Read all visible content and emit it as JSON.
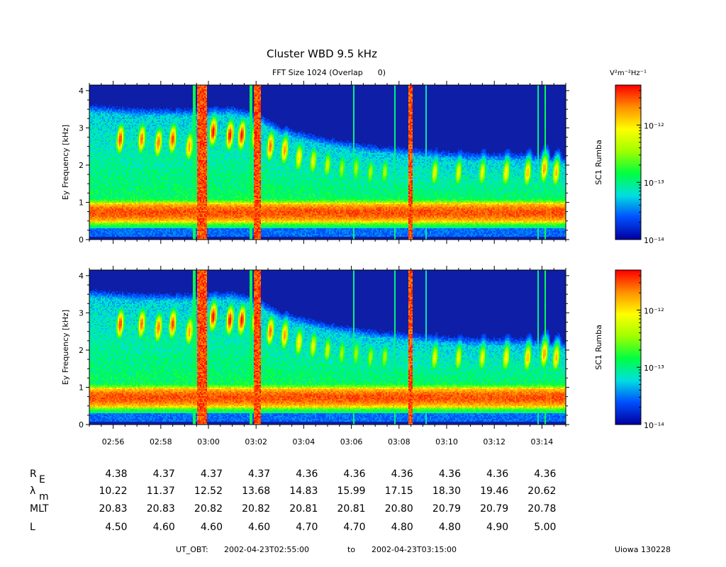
{
  "chart_data": {
    "type": "heatmap",
    "title": "Cluster WBD 9.5 kHz",
    "subtitle": "FFT Size 1024 (Overlap      0)",
    "colorbar_unit": "V²m⁻²Hz⁻¹",
    "colorbar_range": [
      1e-14,
      5e-12
    ],
    "colorbar_ticks": [
      {
        "value": 1e-14,
        "label": "10⁻¹⁴"
      },
      {
        "value": 1e-13,
        "label": "10⁻¹³"
      },
      {
        "value": 1e-12,
        "label": "10⁻¹²"
      }
    ],
    "colormap": [
      "#0000a0",
      "#0050ff",
      "#00e0e0",
      "#00ff40",
      "#a0ff00",
      "#ffff00",
      "#ff9000",
      "#ff0000"
    ],
    "background_color": "#0e1ea6",
    "x_range_minutes": [
      0,
      20
    ],
    "x_ticks": [
      {
        "value": 1,
        "label": "02:56"
      },
      {
        "value": 3,
        "label": "02:58"
      },
      {
        "value": 5,
        "label": "03:00"
      },
      {
        "value": 7,
        "label": "03:02"
      },
      {
        "value": 9,
        "label": "03:04"
      },
      {
        "value": 11,
        "label": "03:06"
      },
      {
        "value": 13,
        "label": "03:08"
      },
      {
        "value": 15,
        "label": "03:10"
      },
      {
        "value": 17,
        "label": "03:12"
      },
      {
        "value": 19,
        "label": "03:14"
      }
    ],
    "y_range_khz": [
      0,
      4.15
    ],
    "y_ticks": [
      {
        "value": 0,
        "label": "0"
      },
      {
        "value": 1,
        "label": "1"
      },
      {
        "value": 2,
        "label": "2"
      },
      {
        "value": 3,
        "label": "3"
      },
      {
        "value": 4,
        "label": "4"
      }
    ],
    "panels": [
      {
        "ylabel": "Ey Frequency [kHz]",
        "colorbar_label": "SC1 Rumba"
      },
      {
        "ylabel": "Ey Frequency [kHz]",
        "colorbar_label": "SC1 Rumba"
      }
    ],
    "features": {
      "emission_upper_khz": [
        [
          0,
          3.4
        ],
        [
          2,
          3.3
        ],
        [
          4,
          3.3
        ],
        [
          6,
          3.35
        ],
        [
          7,
          3.2
        ],
        [
          8,
          2.8
        ],
        [
          10,
          2.5
        ],
        [
          12,
          2.3
        ],
        [
          14,
          2.2
        ],
        [
          16,
          2.1
        ],
        [
          18,
          2.1
        ],
        [
          20,
          2.0
        ]
      ],
      "chorus_elements": [
        {
          "t": 1.3,
          "f": 2.7,
          "i": 0.95
        },
        {
          "t": 2.2,
          "f": 2.7,
          "i": 0.9
        },
        {
          "t": 2.9,
          "f": 2.6,
          "i": 0.9
        },
        {
          "t": 3.5,
          "f": 2.7,
          "i": 0.95
        },
        {
          "t": 4.2,
          "f": 2.5,
          "i": 0.85
        },
        {
          "t": 5.2,
          "f": 2.9,
          "i": 1.0
        },
        {
          "t": 5.9,
          "f": 2.8,
          "i": 1.0
        },
        {
          "t": 6.4,
          "f": 2.8,
          "i": 1.0
        },
        {
          "t": 7.0,
          "f": 2.8,
          "i": 1.0
        },
        {
          "t": 7.6,
          "f": 2.5,
          "i": 0.9
        },
        {
          "t": 8.2,
          "f": 2.4,
          "i": 0.85
        },
        {
          "t": 8.8,
          "f": 2.2,
          "i": 0.75
        },
        {
          "t": 9.4,
          "f": 2.1,
          "i": 0.7
        },
        {
          "t": 10.0,
          "f": 2.0,
          "i": 0.65
        },
        {
          "t": 10.6,
          "f": 1.9,
          "i": 0.6
        },
        {
          "t": 11.2,
          "f": 1.9,
          "i": 0.6
        },
        {
          "t": 11.8,
          "f": 1.8,
          "i": 0.6
        },
        {
          "t": 12.4,
          "f": 1.8,
          "i": 0.6
        },
        {
          "t": 14.5,
          "f": 1.8,
          "i": 0.7
        },
        {
          "t": 15.5,
          "f": 1.8,
          "i": 0.7
        },
        {
          "t": 16.5,
          "f": 1.8,
          "i": 0.7
        },
        {
          "t": 17.5,
          "f": 1.8,
          "i": 0.75
        },
        {
          "t": 18.4,
          "f": 1.8,
          "i": 0.8
        },
        {
          "t": 19.1,
          "f": 1.9,
          "i": 0.85
        },
        {
          "t": 19.6,
          "f": 1.8,
          "i": 0.8
        }
      ],
      "broadband_bursts": [
        {
          "t0": 4.5,
          "t1": 4.95,
          "i": 1.0
        },
        {
          "t0": 6.9,
          "t1": 7.2,
          "i": 1.0
        },
        {
          "t0": 13.4,
          "t1": 13.6,
          "i": 1.0
        },
        {
          "t0": 4.35,
          "t1": 4.45,
          "i": 0.45
        },
        {
          "t0": 6.75,
          "t1": 6.85,
          "i": 0.45
        },
        {
          "t0": 11.1,
          "t1": 11.15,
          "i": 0.4
        },
        {
          "t0": 12.8,
          "t1": 12.85,
          "i": 0.4
        },
        {
          "t0": 14.1,
          "t1": 14.15,
          "i": 0.35
        },
        {
          "t0": 18.8,
          "t1": 18.85,
          "i": 0.4
        },
        {
          "t0": 19.1,
          "t1": 19.15,
          "i": 0.45
        },
        {
          "t0": 19.5,
          "t1": 19.55,
          "i": 0.45
        }
      ],
      "hiss_band_khz": [
        0.45,
        1.0
      ],
      "low_band_khz": [
        0.08,
        0.3
      ]
    }
  },
  "ephemeris": {
    "rows": [
      {
        "label": "R",
        "sub": "E",
        "values": [
          "4.38",
          "4.37",
          "4.37",
          "4.37",
          "4.36",
          "4.36",
          "4.36",
          "4.36",
          "4.36",
          "4.36"
        ]
      },
      {
        "label": "λ",
        "sub": "m",
        "values": [
          "10.22",
          "11.37",
          "12.52",
          "13.68",
          "14.83",
          "15.99",
          "17.15",
          "18.30",
          "19.46",
          "20.62"
        ]
      },
      {
        "label": "MLT",
        "sub": "",
        "values": [
          "20.83",
          "20.83",
          "20.82",
          "20.82",
          "20.81",
          "20.81",
          "20.80",
          "20.79",
          "20.79",
          "20.78"
        ]
      },
      {
        "label": "L",
        "sub": "",
        "values": [
          "4.50",
          "4.60",
          "4.60",
          "4.60",
          "4.70",
          "4.70",
          "4.80",
          "4.80",
          "4.90",
          "5.00"
        ]
      }
    ]
  },
  "footer": {
    "time_label": "UT_OBT:",
    "start": "2002-04-23T02:55:00",
    "to": "to",
    "end": "2002-04-23T03:15:00",
    "credit": "Uiowa 130228"
  }
}
